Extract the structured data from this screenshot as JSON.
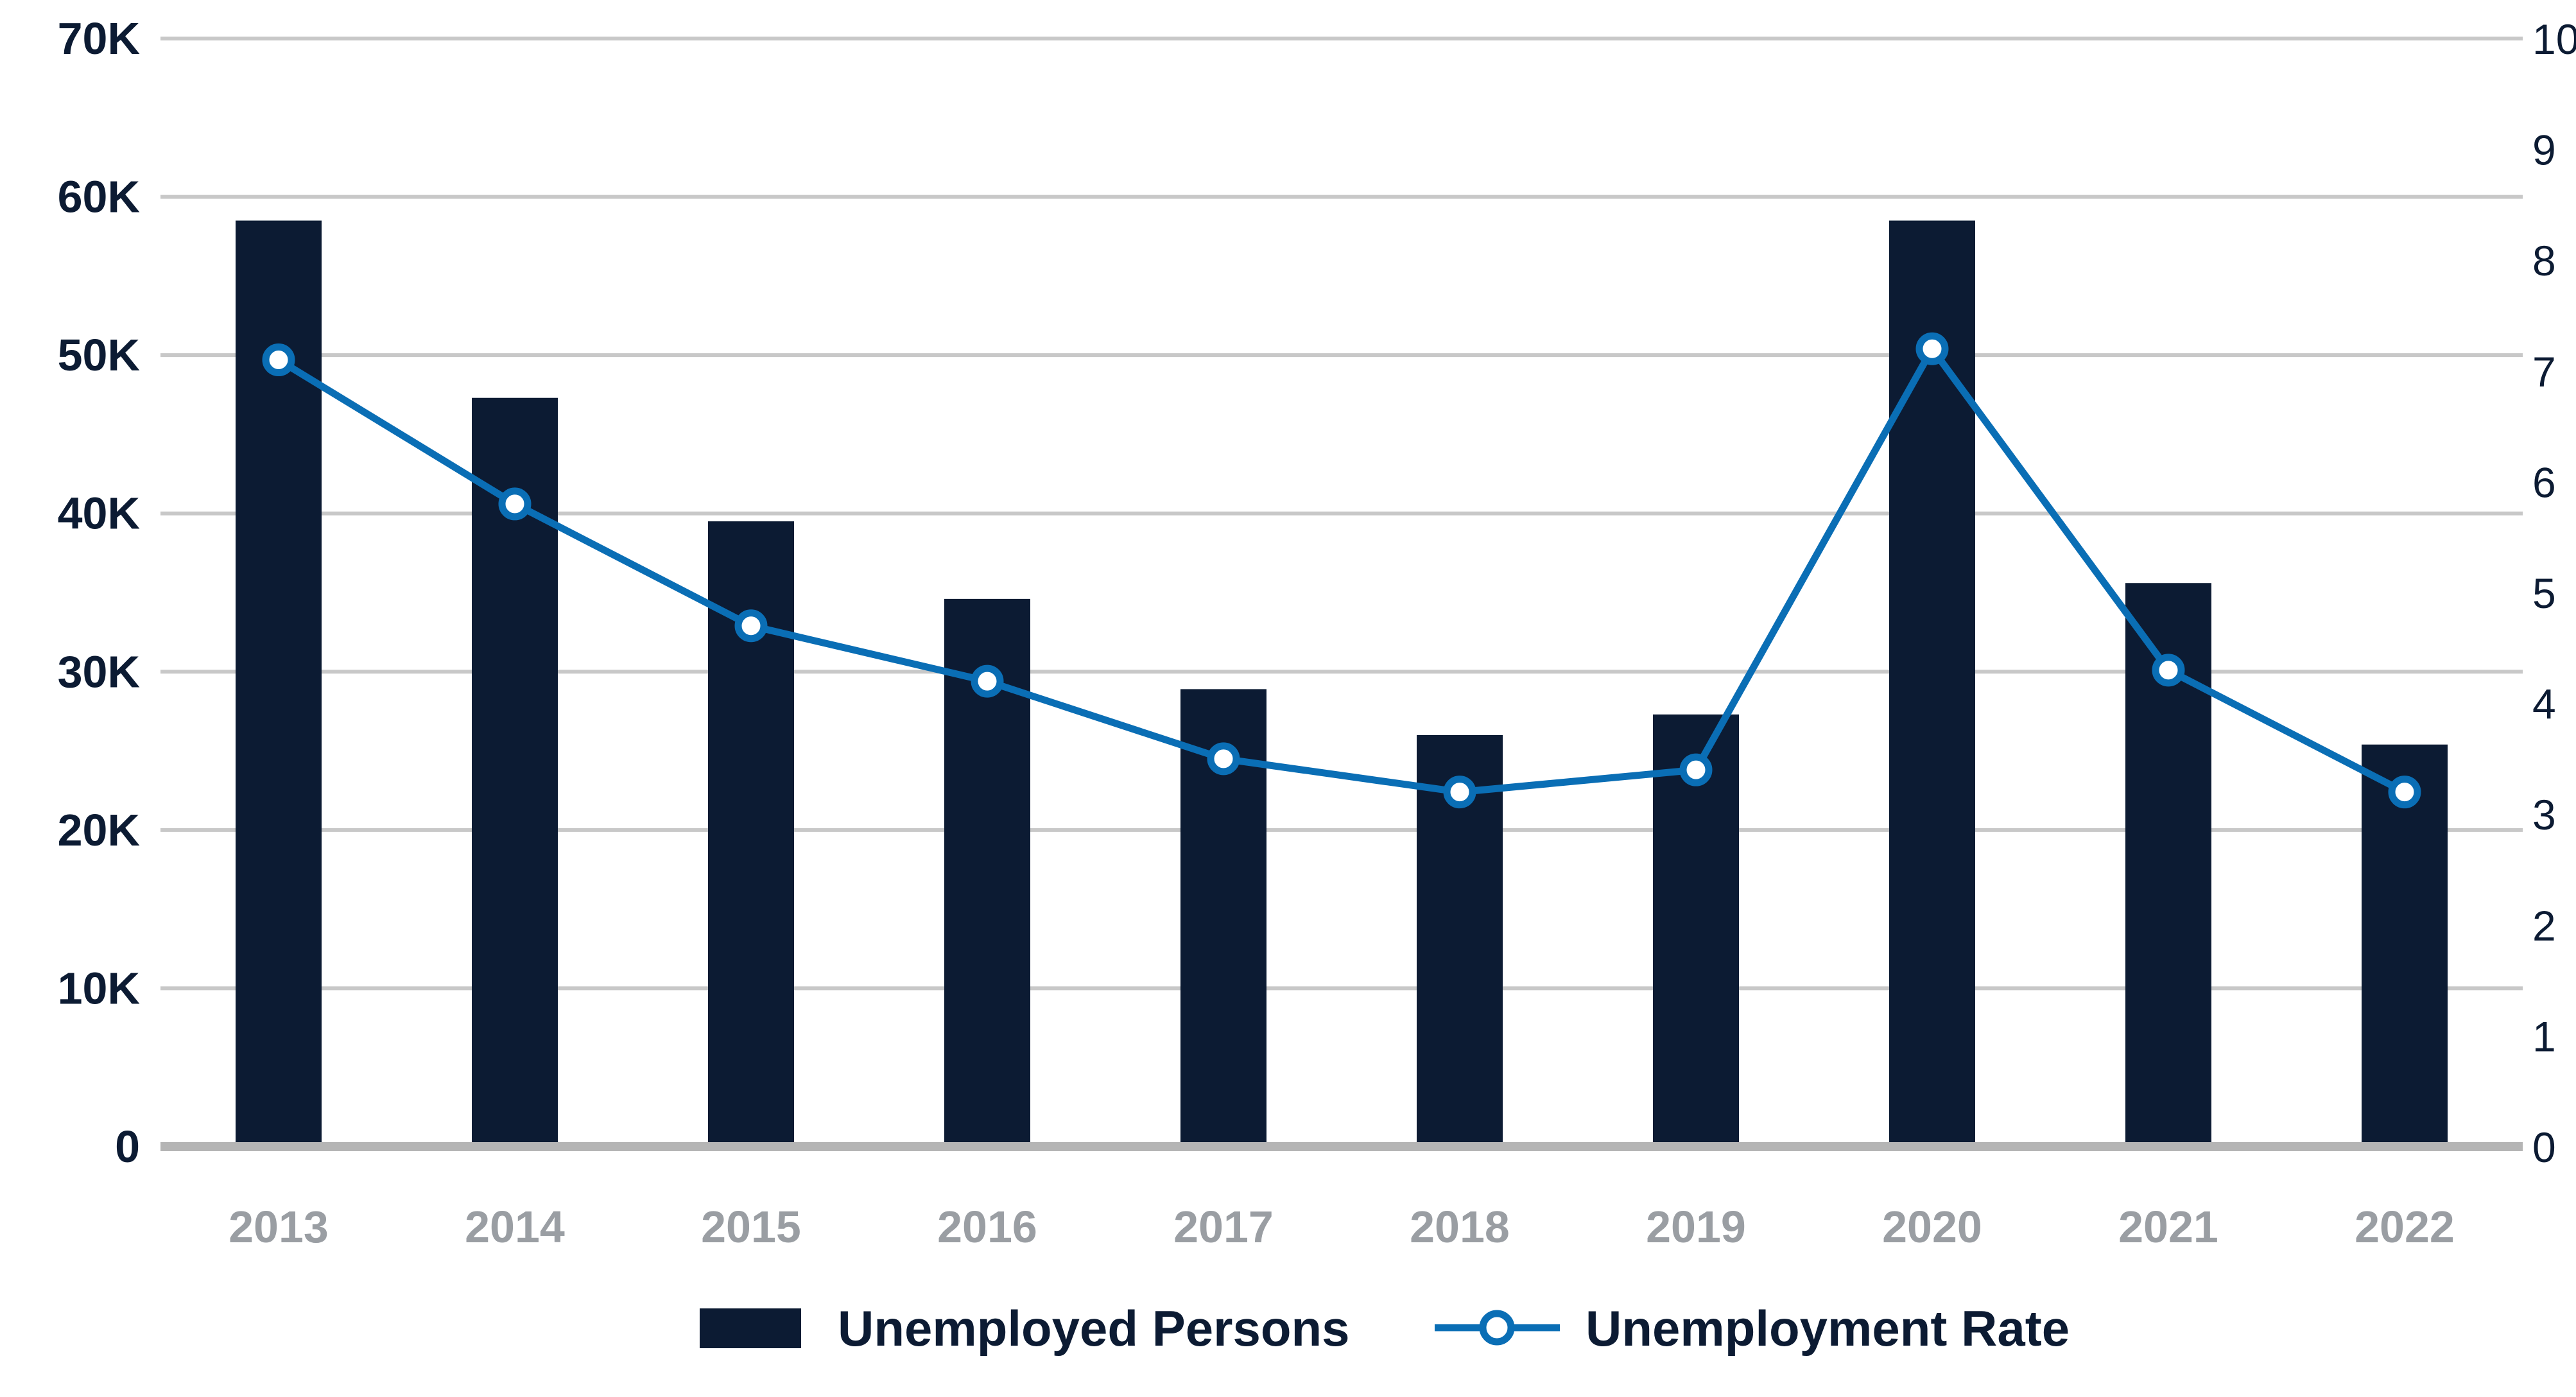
{
  "chart_data": {
    "type": "bar+line",
    "categories": [
      "2013",
      "2014",
      "2015",
      "2016",
      "2017",
      "2018",
      "2019",
      "2020",
      "2021",
      "2022"
    ],
    "series": [
      {
        "name": "Unemployed Persons",
        "kind": "bar",
        "axis": "left",
        "values": [
          58500,
          47300,
          39500,
          34600,
          28900,
          26000,
          27300,
          58500,
          35600,
          25400
        ]
      },
      {
        "name": "Unemployment Rate",
        "kind": "line",
        "axis": "right",
        "values": [
          7.1,
          5.8,
          4.7,
          4.2,
          3.5,
          3.2,
          3.4,
          7.2,
          4.3,
          3.2
        ]
      }
    ],
    "y_left": {
      "ylim": [
        0,
        70000
      ],
      "ticks": [
        0,
        10000,
        20000,
        30000,
        40000,
        50000,
        60000,
        70000
      ],
      "tick_labels": [
        "0",
        "10K",
        "20K",
        "30K",
        "40K",
        "50K",
        "60K",
        "70K"
      ]
    },
    "y_right": {
      "ylim": [
        0,
        10
      ],
      "ticks": [
        0,
        1,
        2,
        3,
        4,
        5,
        6,
        7,
        8,
        9,
        10
      ],
      "tick_labels": [
        "0",
        "1",
        "2",
        "3",
        "4",
        "5",
        "6",
        "7",
        "8",
        "9",
        "10"
      ]
    },
    "title": "",
    "xlabel": "",
    "ylabel": "",
    "grid": true,
    "legend": {
      "placement": "bottom-center",
      "entries": [
        "Unemployed Persons",
        "Unemployment Rate"
      ]
    },
    "colors": {
      "bar": "#0c1b33",
      "line": "#0a6eb5",
      "grid": "#c8c8c8",
      "axis": "#b5b5b5",
      "x_tick": "#9a9ea3",
      "text": "#0c1b33"
    }
  }
}
